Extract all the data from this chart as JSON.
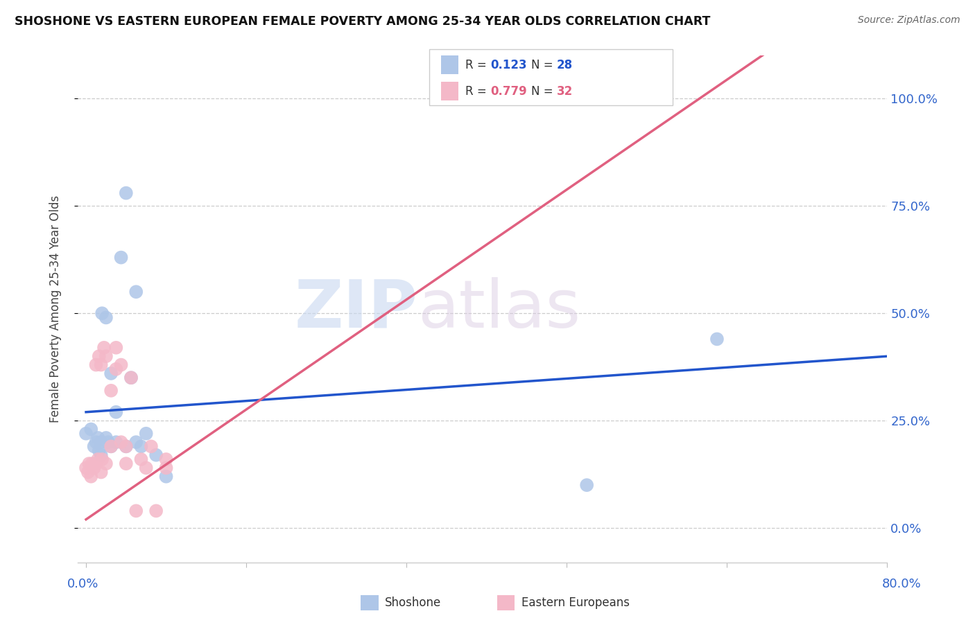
{
  "title": "SHOSHONE VS EASTERN EUROPEAN FEMALE POVERTY AMONG 25-34 YEAR OLDS CORRELATION CHART",
  "source": "Source: ZipAtlas.com",
  "ylabel": "Female Poverty Among 25-34 Year Olds",
  "ytick_labels": [
    "0.0%",
    "25.0%",
    "50.0%",
    "75.0%",
    "100.0%"
  ],
  "ytick_values": [
    0.0,
    0.25,
    0.5,
    0.75,
    1.0
  ],
  "xmax": 0.8,
  "ymin": -0.08,
  "ymax": 1.1,
  "watermark_zip": "ZIP",
  "watermark_atlas": "atlas",
  "shoshone_color": "#aec6e8",
  "eastern_color": "#f4b8c8",
  "shoshone_line_color": "#2255cc",
  "eastern_line_color": "#e06080",
  "shoshone_r": 0.123,
  "shoshone_n": 28,
  "eastern_r": 0.779,
  "eastern_n": 32,
  "shoshone_points_x": [
    0.0,
    0.005,
    0.008,
    0.01,
    0.012,
    0.013,
    0.015,
    0.015,
    0.016,
    0.02,
    0.02,
    0.022,
    0.025,
    0.025,
    0.03,
    0.03,
    0.035,
    0.04,
    0.04,
    0.045,
    0.05,
    0.05,
    0.055,
    0.06,
    0.07,
    0.08,
    0.5,
    0.63
  ],
  "shoshone_points_y": [
    0.22,
    0.23,
    0.19,
    0.2,
    0.21,
    0.18,
    0.17,
    0.2,
    0.5,
    0.49,
    0.21,
    0.2,
    0.19,
    0.36,
    0.2,
    0.27,
    0.63,
    0.19,
    0.78,
    0.35,
    0.2,
    0.55,
    0.19,
    0.22,
    0.17,
    0.12,
    0.1,
    0.44
  ],
  "eastern_points_x": [
    0.0,
    0.002,
    0.003,
    0.005,
    0.006,
    0.008,
    0.01,
    0.01,
    0.012,
    0.013,
    0.015,
    0.015,
    0.016,
    0.018,
    0.02,
    0.02,
    0.025,
    0.025,
    0.03,
    0.03,
    0.035,
    0.035,
    0.04,
    0.04,
    0.045,
    0.05,
    0.055,
    0.06,
    0.065,
    0.07,
    0.08,
    0.08
  ],
  "eastern_points_y": [
    0.14,
    0.13,
    0.15,
    0.12,
    0.15,
    0.14,
    0.15,
    0.38,
    0.16,
    0.4,
    0.13,
    0.38,
    0.16,
    0.42,
    0.15,
    0.4,
    0.32,
    0.19,
    0.37,
    0.42,
    0.2,
    0.38,
    0.19,
    0.15,
    0.35,
    0.04,
    0.16,
    0.14,
    0.19,
    0.04,
    0.14,
    0.16
  ]
}
